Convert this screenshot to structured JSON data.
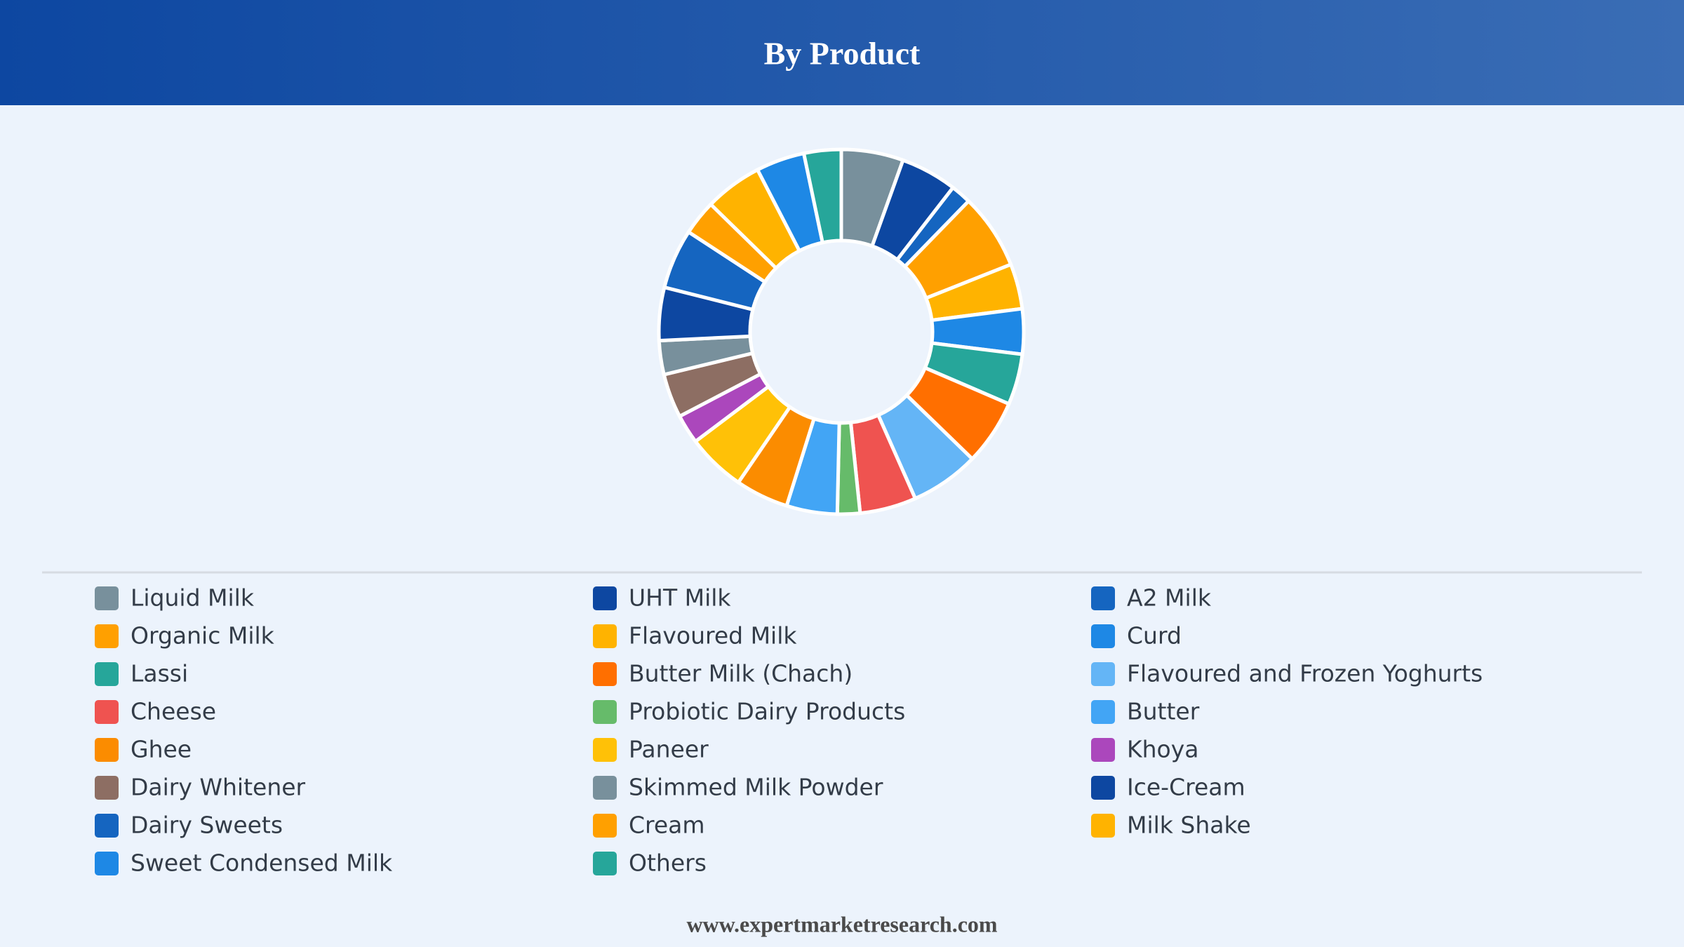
{
  "chart_data": {
    "type": "donut",
    "title": "By Product",
    "categories": [
      "Liquid Milk",
      "UHT Milk",
      "A2 Milk",
      "Organic Milk",
      "Flavoured Milk",
      "Curd",
      "Lassi",
      "Butter Milk (Chach)",
      "Flavoured and Frozen Yoghurts",
      "Cheese",
      "Probiotic Dairy Products",
      "Butter",
      "Ghee",
      "Paneer",
      "Khoya",
      "Dairy Whitener",
      "Skimmed Milk Powder",
      "Ice-Cream",
      "Dairy Sweets",
      "Cream",
      "Milk Shake",
      "Sweet Condensed Milk",
      "Others"
    ],
    "values": [
      5.5,
      5,
      1.8,
      6.7,
      4,
      4,
      4.5,
      5.8,
      6.1,
      5,
      2,
      4.5,
      4.7,
      5.2,
      2.6,
      3.9,
      3,
      4.7,
      5.3,
      3.1,
      5.1,
      4.3,
      3.3
    ],
    "colors": [
      "#78909c",
      "#0d47a1",
      "#1565c0",
      "#ffa000",
      "#ffb300",
      "#1e88e5",
      "#26a69a",
      "#ff6f00",
      "#64b5f6",
      "#ef5350",
      "#66bb6a",
      "#42a5f5",
      "#fb8c00",
      "#ffc107",
      "#ab47bc",
      "#8d6e63",
      "#78909c",
      "#0d47a1",
      "#1565c0",
      "#ffa000",
      "#ffb300",
      "#1e88e5",
      "#26a69a"
    ],
    "source": "www.expertmarketresearch.com"
  }
}
